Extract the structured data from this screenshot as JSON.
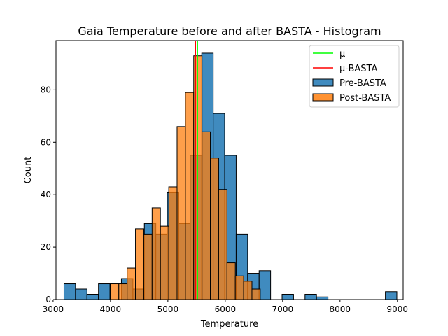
{
  "chart_data": {
    "type": "histogram",
    "title": "Gaia Temperature before and after BASTA - Histogram",
    "xlabel": "Temperature",
    "ylabel": "Count",
    "xlim": [
      3050,
      9100
    ],
    "ylim": [
      0,
      98.8
    ],
    "xticks": [
      3000,
      4000,
      5000,
      6000,
      7000,
      8000,
      9000
    ],
    "yticks": [
      0,
      20,
      40,
      60,
      80
    ],
    "grid": false,
    "legend_position": "top-right",
    "legend": [
      {
        "label": "µ",
        "kind": "line",
        "color": "#00ff00"
      },
      {
        "label": "µ-BASTA",
        "kind": "line",
        "color": "#ff0000"
      },
      {
        "label": "Pre-BASTA",
        "kind": "patch",
        "color": "#1f77b4"
      },
      {
        "label": "Post-BASTA",
        "kind": "patch",
        "color": "#ff7f0e"
      }
    ],
    "vlines": [
      {
        "name": "µ",
        "x": 5515,
        "color": "#00ff00"
      },
      {
        "name": "µ-BASTA",
        "x": 5480,
        "color": "#ff0000"
      }
    ],
    "series": [
      {
        "name": "Pre-BASTA",
        "color": "#1f77b4",
        "bin_edges": [
          3190,
          3390,
          3590,
          3790,
          3990,
          4190,
          4390,
          4590,
          4790,
          4990,
          5190,
          5390,
          5590,
          5790,
          5990,
          6190,
          6390,
          6590,
          6790,
          6990,
          7190,
          7390,
          7590,
          7790,
          7990,
          8190,
          8390,
          8590,
          8790,
          8990
        ],
        "counts": [
          6,
          4,
          2,
          6,
          0,
          8,
          4,
          29,
          25,
          41,
          29,
          55,
          94,
          71,
          55,
          25,
          10,
          11,
          0,
          2,
          0,
          2,
          1,
          0,
          0,
          0,
          0,
          0,
          3
        ]
      },
      {
        "name": "Post-BASTA",
        "color": "#ff7f0e",
        "bin_edges": [
          4000,
          4145,
          4290,
          4435,
          4580,
          4725,
          4870,
          5015,
          5160,
          5305,
          5450,
          5595,
          5740,
          5885,
          6030,
          6175,
          6320,
          6465,
          6610
        ],
        "counts": [
          6,
          6,
          12,
          27,
          25,
          35,
          28,
          43,
          66,
          79,
          93,
          64,
          54,
          42,
          14,
          9,
          7,
          4
        ]
      }
    ]
  }
}
